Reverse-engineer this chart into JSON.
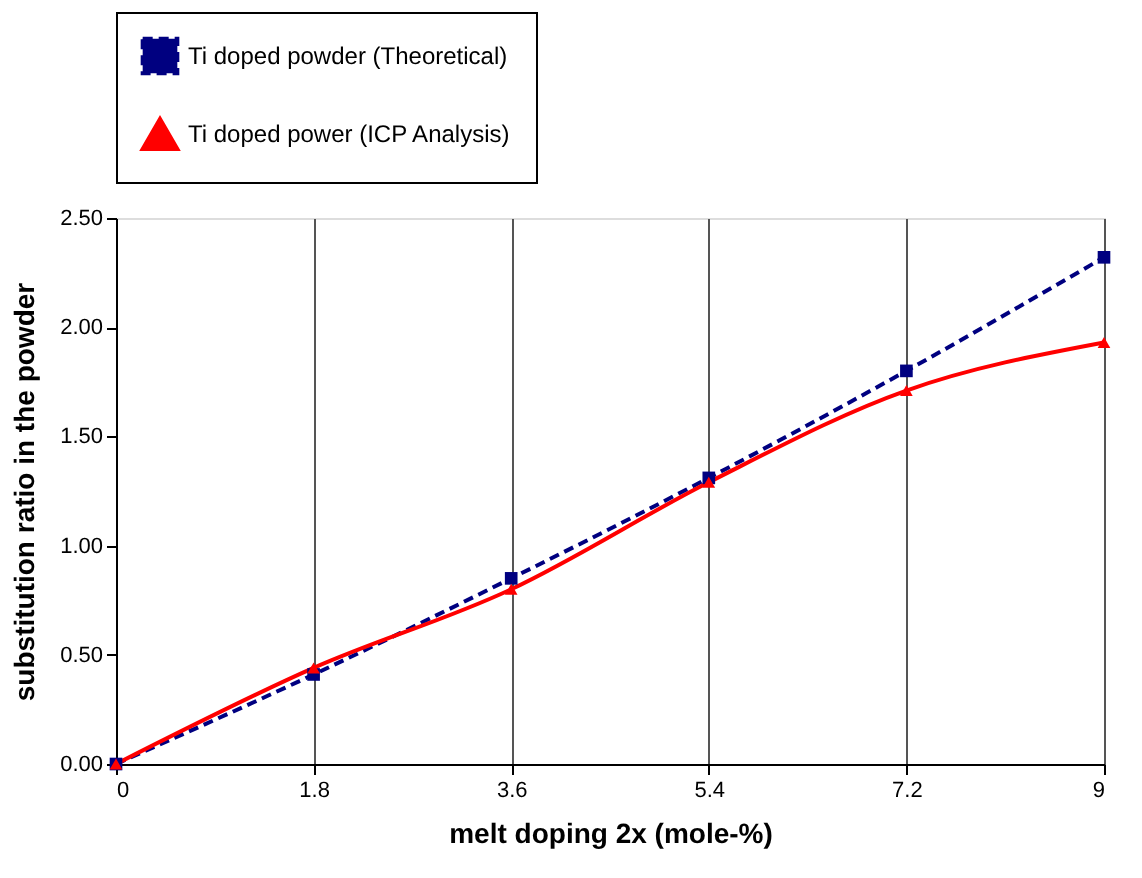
{
  "chart_data": {
    "type": "line",
    "xlabel": "melt doping 2x (mole-%)",
    "ylabel": "substitution ratio in the powder",
    "x": [
      0,
      1.8,
      3.6,
      5.4,
      7.2,
      9
    ],
    "series": [
      {
        "name": "Ti doped powder (Theoretical)",
        "color": "#000080",
        "values": [
          0,
          0.41,
          0.85,
          1.31,
          1.8,
          2.32
        ],
        "marker": "square",
        "line_style": "dashed"
      },
      {
        "name": "Ti doped power (ICP Analysis)",
        "color": "#ff0000",
        "values": [
          0,
          0.44,
          0.8,
          1.29,
          1.71,
          1.93
        ],
        "marker": "triangle",
        "line_style": "solid"
      }
    ],
    "xlim": [
      0,
      9
    ],
    "xticks": [
      0,
      1.8,
      3.6,
      5.4,
      7.2,
      9
    ],
    "ylim": [
      0,
      2.5
    ],
    "yticks": [
      {
        "value": 0,
        "label": "0.00"
      },
      {
        "value": 0.5,
        "label": "0.50"
      },
      {
        "value": 1,
        "label": "1.00"
      },
      {
        "value": 1.5,
        "label": "1.50"
      },
      {
        "value": 2,
        "label": "2.00"
      },
      {
        "value": 2.5,
        "label": "2.50"
      }
    ],
    "grid": "x",
    "legend": "top"
  }
}
